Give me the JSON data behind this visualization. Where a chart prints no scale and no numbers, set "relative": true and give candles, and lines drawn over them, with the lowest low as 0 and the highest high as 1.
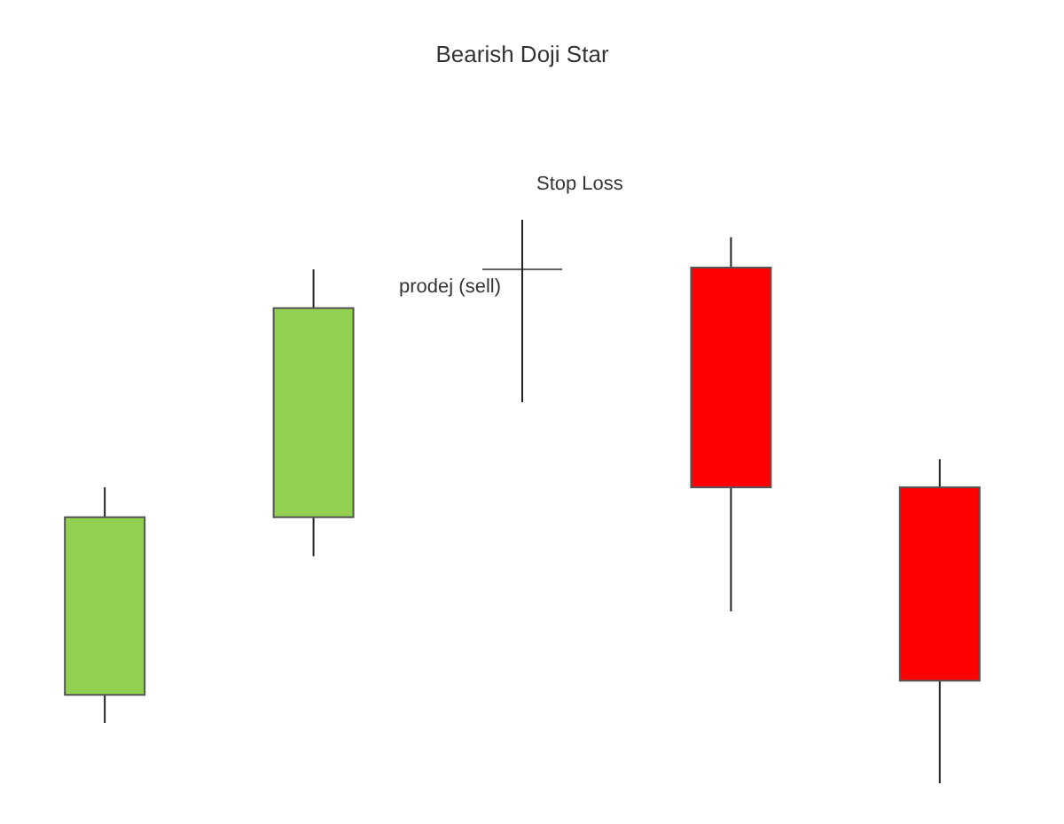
{
  "chart_data": {
    "type": "candlestick",
    "title": "Bearish Doji Star",
    "relative": true,
    "categories": [
      null,
      null,
      null,
      null,
      null
    ],
    "ohlc": [
      [
        0.157,
        0.525,
        0.107,
        0.472
      ],
      [
        0.472,
        0.912,
        0.403,
        0.843
      ],
      [
        0.912,
        1,
        0.676,
        0.912
      ],
      [
        0.915,
        0.969,
        0.305,
        0.525
      ],
      [
        0.525,
        0.575,
        0,
        0.182
      ]
    ],
    "colors": [
      "#92d050",
      "#92d050",
      "#222222",
      "#ff0000",
      "#ff0000"
    ],
    "annotations": [
      "Stop Loss",
      "prodej (sell)"
    ],
    "grid": false
  }
}
